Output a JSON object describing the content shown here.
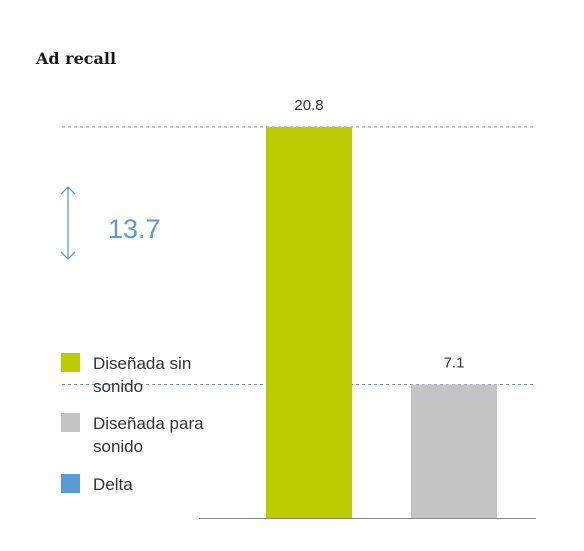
{
  "chart_data": {
    "type": "bar",
    "title": "Ad recall",
    "categories": [
      "Diseñada sin sonido",
      "Diseñada para sonido"
    ],
    "values": [
      20.8,
      7.1
    ],
    "value_labels": [
      "20.8",
      "7.1"
    ],
    "delta": {
      "value": 13.7,
      "label": "13.7"
    },
    "ylim": [
      0,
      20.8
    ],
    "grid": false,
    "legend": {
      "placement": "left",
      "items": [
        {
          "line1": "Diseñada sin",
          "line2": "sonido",
          "color": "#bbcc00"
        },
        {
          "line1": "Diseñada para",
          "line2": "sonido",
          "color": "#c4c4c8"
        },
        {
          "line1": "Delta",
          "line2": "",
          "color": "#5b9bd5"
        }
      ]
    },
    "colors": {
      "bars": [
        "#bbcc00",
        "#c4c4c8"
      ],
      "delta": "#5b9bd5",
      "reference_line": "#6a9fc4",
      "axis": "#888888"
    }
  }
}
